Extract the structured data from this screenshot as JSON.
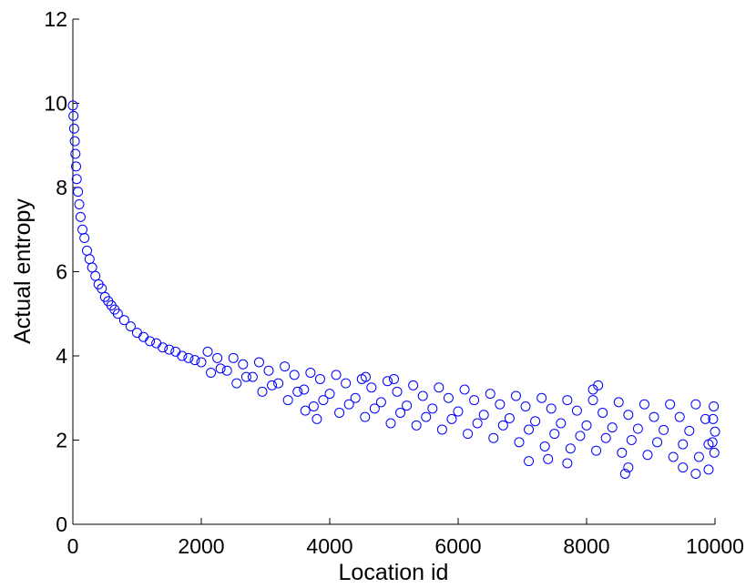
{
  "chart_data": {
    "type": "scatter",
    "xlabel": "Location id",
    "ylabel": "Actual entropy",
    "color": "#0000ff",
    "xlim": [
      0,
      10000
    ],
    "xticks": [
      0,
      2000,
      4000,
      6000,
      8000,
      10000
    ],
    "ylim": [
      0,
      12
    ],
    "yticks": [
      0,
      2,
      4,
      6,
      8,
      10,
      12
    ],
    "x": [
      0,
      10,
      20,
      30,
      40,
      50,
      60,
      80,
      100,
      120,
      150,
      180,
      220,
      260,
      300,
      350,
      400,
      450,
      500,
      550,
      600,
      650,
      700,
      800,
      900,
      1000,
      1100,
      1200,
      1300,
      1400,
      1500,
      1600,
      1700,
      1800,
      1900,
      2000,
      2100,
      2150,
      2250,
      2300,
      2400,
      2500,
      2550,
      2650,
      2700,
      2800,
      2900,
      2950,
      3050,
      3100,
      3200,
      3300,
      3350,
      3450,
      3500,
      3600,
      3700,
      3750,
      3850,
      3900,
      4000,
      4100,
      4150,
      4250,
      4300,
      4400,
      4500,
      4550,
      4650,
      4700,
      4800,
      4900,
      4950,
      5050,
      5100,
      5200,
      5300,
      5350,
      5450,
      5500,
      5600,
      5700,
      5750,
      5850,
      5900,
      6000,
      6100,
      6150,
      6250,
      6300,
      6400,
      6500,
      6550,
      6650,
      6700,
      6800,
      6900,
      6950,
      7050,
      7100,
      7200,
      7300,
      7350,
      7450,
      7500,
      7600,
      7700,
      7750,
      7850,
      7900,
      8000,
      8100,
      8150,
      8250,
      8300,
      8400,
      8500,
      8550,
      8650,
      8700,
      8800,
      8900,
      8950,
      9050,
      9100,
      9200,
      9300,
      9350,
      9450,
      9500,
      9600,
      9700,
      9750,
      9850,
      9900,
      10000,
      9980,
      9990,
      9970,
      9960,
      7100,
      7400,
      7700,
      8600,
      8650,
      9500,
      9700,
      9900,
      8100,
      8180,
      3620,
      3800,
      4560,
      5000
    ],
    "values": [
      9.95,
      9.7,
      9.4,
      9.1,
      8.8,
      8.5,
      8.2,
      7.9,
      7.6,
      7.3,
      7.0,
      6.8,
      6.5,
      6.3,
      6.1,
      5.9,
      5.7,
      5.6,
      5.4,
      5.3,
      5.2,
      5.1,
      5.0,
      4.85,
      4.7,
      4.55,
      4.45,
      4.35,
      4.3,
      4.2,
      4.15,
      4.1,
      4.0,
      3.95,
      3.9,
      3.85,
      4.1,
      3.6,
      3.95,
      3.7,
      3.65,
      3.95,
      3.35,
      3.8,
      3.5,
      3.5,
      3.85,
      3.15,
      3.65,
      3.3,
      3.35,
      3.75,
      2.95,
      3.55,
      3.15,
      3.2,
      3.6,
      2.8,
      3.45,
      2.95,
      3.1,
      3.55,
      2.65,
      3.35,
      2.85,
      3.0,
      3.45,
      2.55,
      3.25,
      2.75,
      2.9,
      3.4,
      2.4,
      3.15,
      2.65,
      2.82,
      3.3,
      2.35,
      3.05,
      2.55,
      2.75,
      3.25,
      2.25,
      3.0,
      2.5,
      2.68,
      3.2,
      2.15,
      2.95,
      2.4,
      2.6,
      3.1,
      2.05,
      2.85,
      2.35,
      2.52,
      3.05,
      1.95,
      2.8,
      2.25,
      2.45,
      3.0,
      1.85,
      2.75,
      2.15,
      2.4,
      2.95,
      1.8,
      2.7,
      2.1,
      2.35,
      2.95,
      1.75,
      2.65,
      2.05,
      2.3,
      2.9,
      1.7,
      2.6,
      2.0,
      2.27,
      2.85,
      1.65,
      2.55,
      1.95,
      2.24,
      2.85,
      1.6,
      2.55,
      1.9,
      2.22,
      2.85,
      1.6,
      2.5,
      1.9,
      2.2,
      2.8,
      1.7,
      2.5,
      1.95,
      1.5,
      1.55,
      1.45,
      1.2,
      1.35,
      1.35,
      1.2,
      1.3,
      3.2,
      3.3,
      2.7,
      2.5,
      3.5,
      3.45
    ]
  }
}
